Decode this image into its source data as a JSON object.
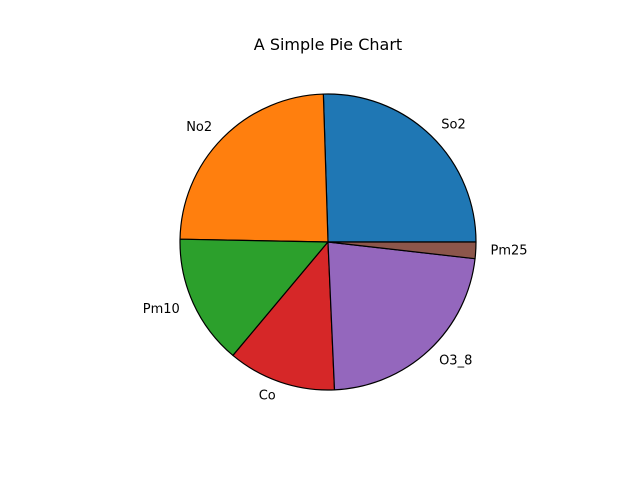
{
  "chart_data": {
    "type": "pie",
    "title": "A Simple Pie Chart",
    "labels": [
      "So2",
      "No2",
      "Pm10",
      "Co",
      "O3_8",
      "Pm25"
    ],
    "values": [
      25.5,
      24.2,
      14.2,
      11.8,
      22.5,
      1.8
    ],
    "colors": [
      "#1f77b4",
      "#ff7f0e",
      "#2ca02c",
      "#d62728",
      "#9467bd",
      "#8c564b"
    ],
    "start_angle_deg": 0,
    "direction": "counterclockwise",
    "edge_color": "#000000"
  }
}
